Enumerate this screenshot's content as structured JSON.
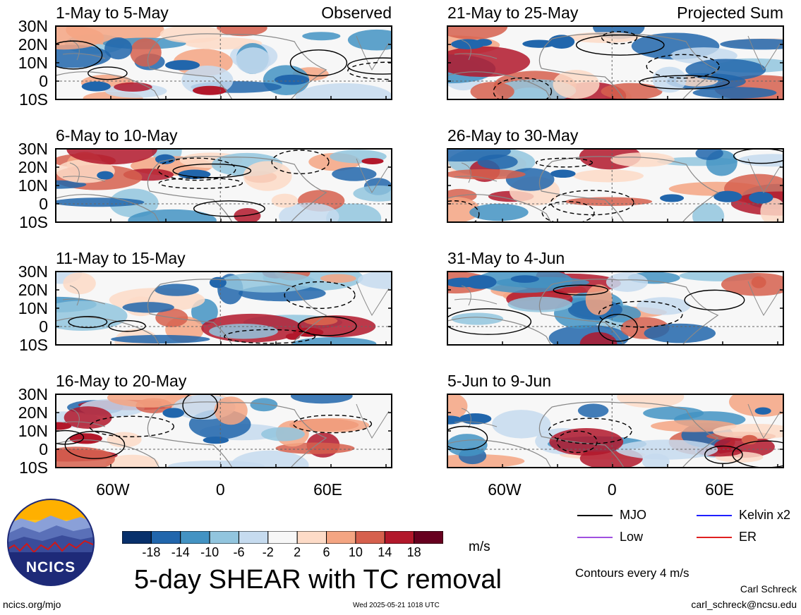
{
  "panels": [
    {
      "title": "1-May to 5-May",
      "corner": "Observed",
      "group": "observed"
    },
    {
      "title": "6-May to 10-May",
      "corner": "",
      "group": "observed"
    },
    {
      "title": "11-May to 15-May",
      "corner": "",
      "group": "observed"
    },
    {
      "title": "16-May to 20-May",
      "corner": "",
      "group": "observed"
    },
    {
      "title": "21-May to 25-May",
      "corner": "Projected Sum",
      "group": "projected"
    },
    {
      "title": "26-May to 30-May",
      "corner": "",
      "group": "projected"
    },
    {
      "title": "31-May to 4-Jun",
      "corner": "",
      "group": "projected"
    },
    {
      "title": "5-Jun to 9-Jun",
      "corner": "",
      "group": "projected"
    }
  ],
  "lat_labels": [
    "30N",
    "20N",
    "10N",
    "0",
    "10S"
  ],
  "lon_labels": [
    "60W",
    "0",
    "60E"
  ],
  "colorbar": {
    "colors": [
      "#08306b",
      "#2166ac",
      "#4393c3",
      "#92c5de",
      "#c6dbef",
      "#f7f7f7",
      "#fddbc7",
      "#f4a582",
      "#d6604d",
      "#b2182b",
      "#67001f"
    ],
    "ticks": [
      "-18",
      "-14",
      "-10",
      "-6",
      "-2",
      "2",
      "6",
      "10",
      "14",
      "18"
    ],
    "units": "m/s"
  },
  "title": "5-day SHEAR with TC removal",
  "legend": [
    {
      "label": "MJO",
      "color": "#000000"
    },
    {
      "label": "Kelvin x2",
      "color": "#1f1fff"
    },
    {
      "label": "Low",
      "color": "#a050e0"
    },
    {
      "label": "ER",
      "color": "#e02020"
    }
  ],
  "contour_note": "Contours every 4 m/s",
  "author": "Carl Schreck",
  "email": "carl_schreck@ncsu.edu",
  "website": "ncics.org/mjo",
  "timestamp": "Wed 2025-05-21 1018 UTC",
  "logo_text": "NCICS"
}
